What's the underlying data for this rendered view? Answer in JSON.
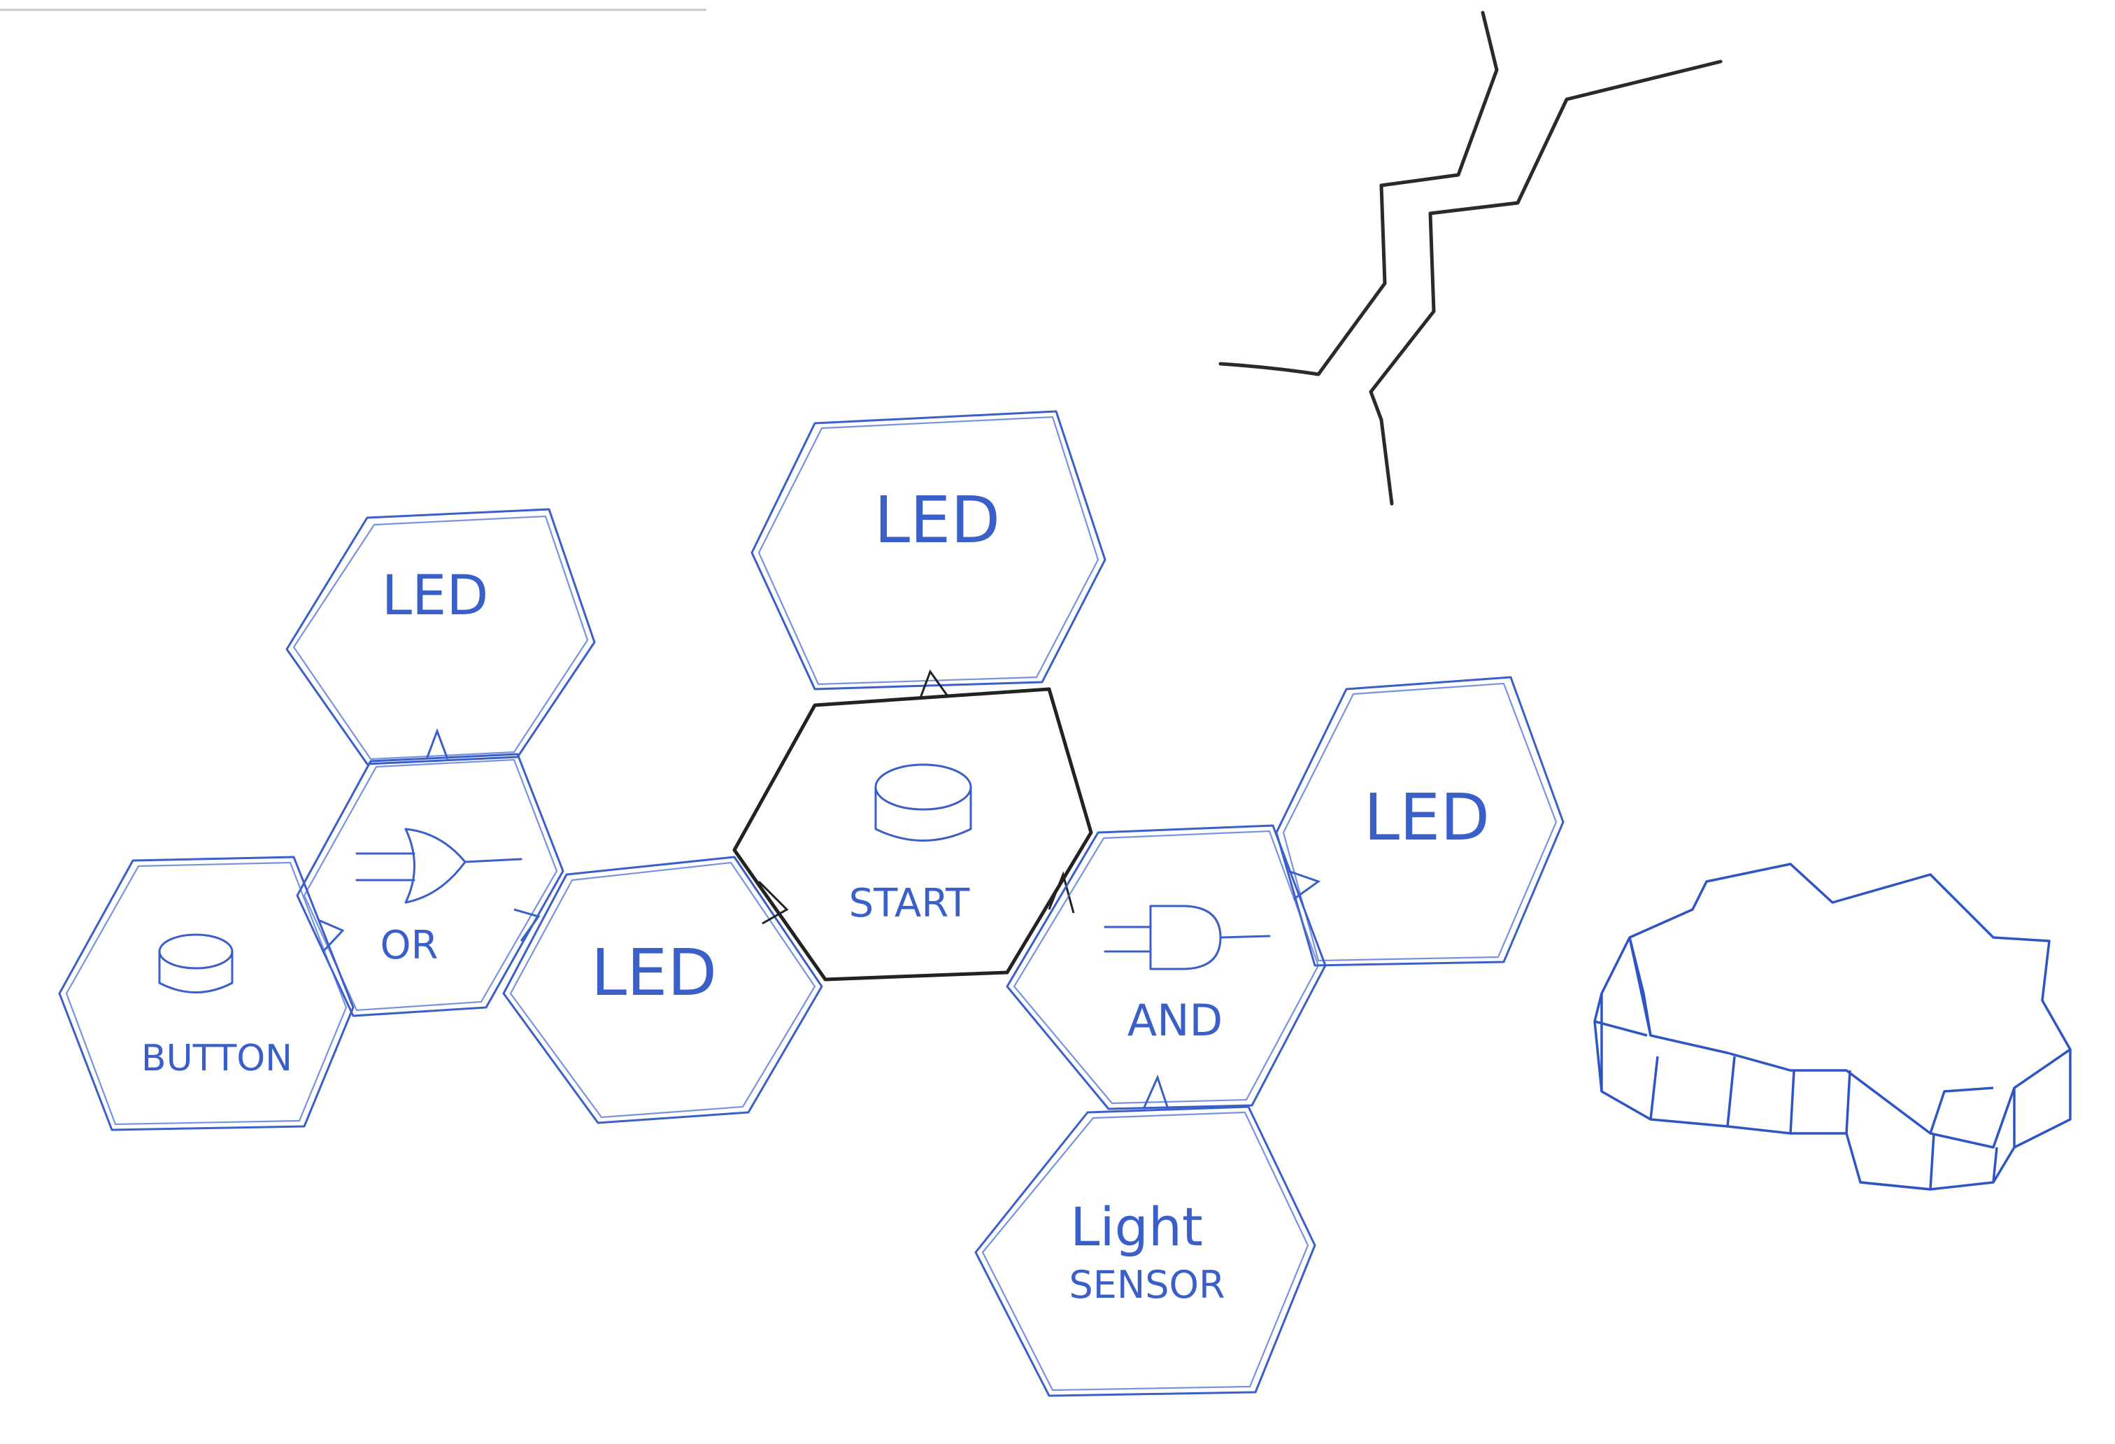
{
  "labels": {
    "led_top_left": "LED",
    "led_top_center": "LED",
    "led_right": "LED",
    "led_middle": "LED",
    "or_gate": "OR",
    "and_gate": "AND",
    "start": "START",
    "button": "BUTTON",
    "light_line1": "Light",
    "light_line2": "SENSOR"
  },
  "colors": {
    "blue_ink": "#3a5fc8",
    "black_ink": "#222222",
    "paper": "#ffffff"
  },
  "icons": [
    "button-icon",
    "or-gate-icon",
    "and-gate-icon",
    "crack-icon",
    "assembled-tile-icon"
  ]
}
